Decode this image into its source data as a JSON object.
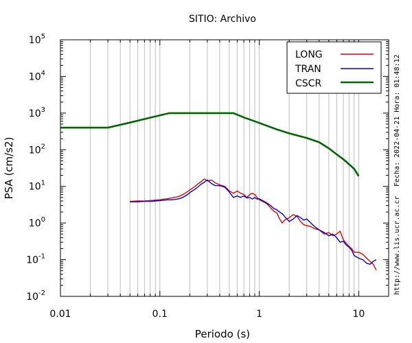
{
  "chart_data": {
    "type": "line",
    "title": "SITIO: Archivo",
    "xlabel": "Periodo (s)",
    "ylabel": "PSA (cm/s2)",
    "x_scale": "log",
    "y_scale": "log",
    "xlim": [
      0.01,
      20
    ],
    "ylim": [
      0.01,
      100000
    ],
    "x_ticks": [
      {
        "value": 0.01,
        "label": "0.01"
      },
      {
        "value": 0.1,
        "label": "0.1"
      },
      {
        "value": 1,
        "label": "1"
      },
      {
        "value": 10,
        "label": "10"
      }
    ],
    "y_ticks": [
      {
        "value": 0.01,
        "base": "10",
        "exp": "-2"
      },
      {
        "value": 0.1,
        "base": "10",
        "exp": "-1"
      },
      {
        "value": 1,
        "base": "10",
        "exp": "0"
      },
      {
        "value": 10,
        "base": "10",
        "exp": "1"
      },
      {
        "value": 100,
        "base": "10",
        "exp": "2"
      },
      {
        "value": 1000,
        "base": "10",
        "exp": "3"
      },
      {
        "value": 10000,
        "base": "10",
        "exp": "4"
      },
      {
        "value": 100000,
        "base": "10",
        "exp": "5"
      }
    ],
    "grid": "vertical-minor",
    "legend_position": "top-right",
    "series": [
      {
        "name": "LONG",
        "color": "#e00000",
        "x": [
          0.05,
          0.06,
          0.07,
          0.08,
          0.09,
          0.1,
          0.11,
          0.12,
          0.13,
          0.14,
          0.15,
          0.16,
          0.17,
          0.18,
          0.19,
          0.2,
          0.22,
          0.24,
          0.26,
          0.28,
          0.3,
          0.33,
          0.36,
          0.4,
          0.45,
          0.5,
          0.55,
          0.6,
          0.65,
          0.7,
          0.75,
          0.8,
          0.85,
          0.9,
          0.95,
          1.0,
          1.1,
          1.2,
          1.3,
          1.4,
          1.5,
          1.6,
          1.7,
          1.8,
          2.0,
          2.2,
          2.4,
          2.6,
          2.8,
          3.0,
          3.3,
          3.6,
          4.0,
          4.5,
          5.0,
          5.5,
          6.0,
          6.5,
          7.0,
          7.5,
          8.0,
          8.5,
          9.0,
          10.0,
          11.0,
          12.0,
          13.0,
          14.0,
          15.0
        ],
        "y": [
          3.9,
          4.0,
          4.0,
          4.1,
          4.2,
          4.3,
          4.5,
          4.6,
          4.8,
          5.0,
          5.2,
          5.5,
          6.0,
          6.5,
          7.2,
          8.0,
          9.5,
          11.5,
          13.5,
          16.0,
          14.0,
          15.0,
          12.5,
          11.0,
          10.0,
          7.5,
          6.5,
          7.5,
          6.5,
          6.0,
          5.0,
          6.0,
          6.5,
          6.0,
          5.0,
          4.3,
          3.8,
          3.3,
          2.6,
          2.1,
          1.9,
          1.3,
          1.0,
          1.2,
          1.4,
          1.7,
          1.5,
          1.1,
          0.9,
          0.85,
          0.8,
          0.7,
          0.65,
          0.5,
          0.55,
          0.45,
          0.5,
          0.6,
          0.35,
          0.28,
          0.23,
          0.2,
          0.16,
          0.16,
          0.14,
          0.11,
          0.09,
          0.075,
          0.052
        ]
      },
      {
        "name": "TRAN",
        "color": "#0000cc",
        "x": [
          0.05,
          0.06,
          0.07,
          0.08,
          0.09,
          0.1,
          0.11,
          0.12,
          0.13,
          0.14,
          0.15,
          0.16,
          0.17,
          0.18,
          0.19,
          0.2,
          0.22,
          0.24,
          0.26,
          0.28,
          0.3,
          0.33,
          0.36,
          0.4,
          0.45,
          0.5,
          0.55,
          0.6,
          0.65,
          0.7,
          0.75,
          0.8,
          0.85,
          0.9,
          0.95,
          1.0,
          1.1,
          1.2,
          1.3,
          1.4,
          1.5,
          1.6,
          1.7,
          1.8,
          2.0,
          2.2,
          2.4,
          2.6,
          2.8,
          3.0,
          3.3,
          3.6,
          4.0,
          4.5,
          5.0,
          5.5,
          6.0,
          6.5,
          7.0,
          7.5,
          8.0,
          8.5,
          9.0,
          10.0,
          11.0,
          12.0,
          13.0,
          14.0,
          15.0
        ],
        "y": [
          3.8,
          3.8,
          3.9,
          3.9,
          4.0,
          4.1,
          4.2,
          4.3,
          4.3,
          4.4,
          4.5,
          4.7,
          5.0,
          5.5,
          6.0,
          6.8,
          8.0,
          9.5,
          11.5,
          13.0,
          15.0,
          12.0,
          10.5,
          10.5,
          9.5,
          7.0,
          5.0,
          5.5,
          5.0,
          5.5,
          4.8,
          5.0,
          4.5,
          5.0,
          4.5,
          4.6,
          4.0,
          3.5,
          3.0,
          2.5,
          2.3,
          2.0,
          1.8,
          1.5,
          1.1,
          1.3,
          1.6,
          1.4,
          1.2,
          1.3,
          1.0,
          0.8,
          0.65,
          0.55,
          0.45,
          0.5,
          0.4,
          0.3,
          0.32,
          0.25,
          0.22,
          0.18,
          0.13,
          0.11,
          0.1,
          0.08,
          0.075,
          0.09,
          0.1
        ]
      },
      {
        "name": "CSCR",
        "color": "#006600",
        "x": [
          0.01,
          0.03,
          0.05,
          0.08,
          0.125,
          0.2,
          0.3,
          0.4,
          0.5,
          0.55,
          0.7,
          1.0,
          1.5,
          2.0,
          3.0,
          4.0,
          5.0,
          6.0,
          7.0,
          8.0,
          9.0,
          10.0
        ],
        "y": [
          400,
          400,
          550,
          750,
          1000,
          1000,
          1000,
          1000,
          1000,
          1000,
          760,
          540,
          360,
          280,
          210,
          160,
          110,
          75,
          55,
          40,
          30,
          19
        ]
      }
    ]
  },
  "annotations": {
    "timestamp": "Fecha: 2022-04-21  Hora: 01:48:12",
    "url": "http://www.lis.ucr.ac.cr"
  }
}
